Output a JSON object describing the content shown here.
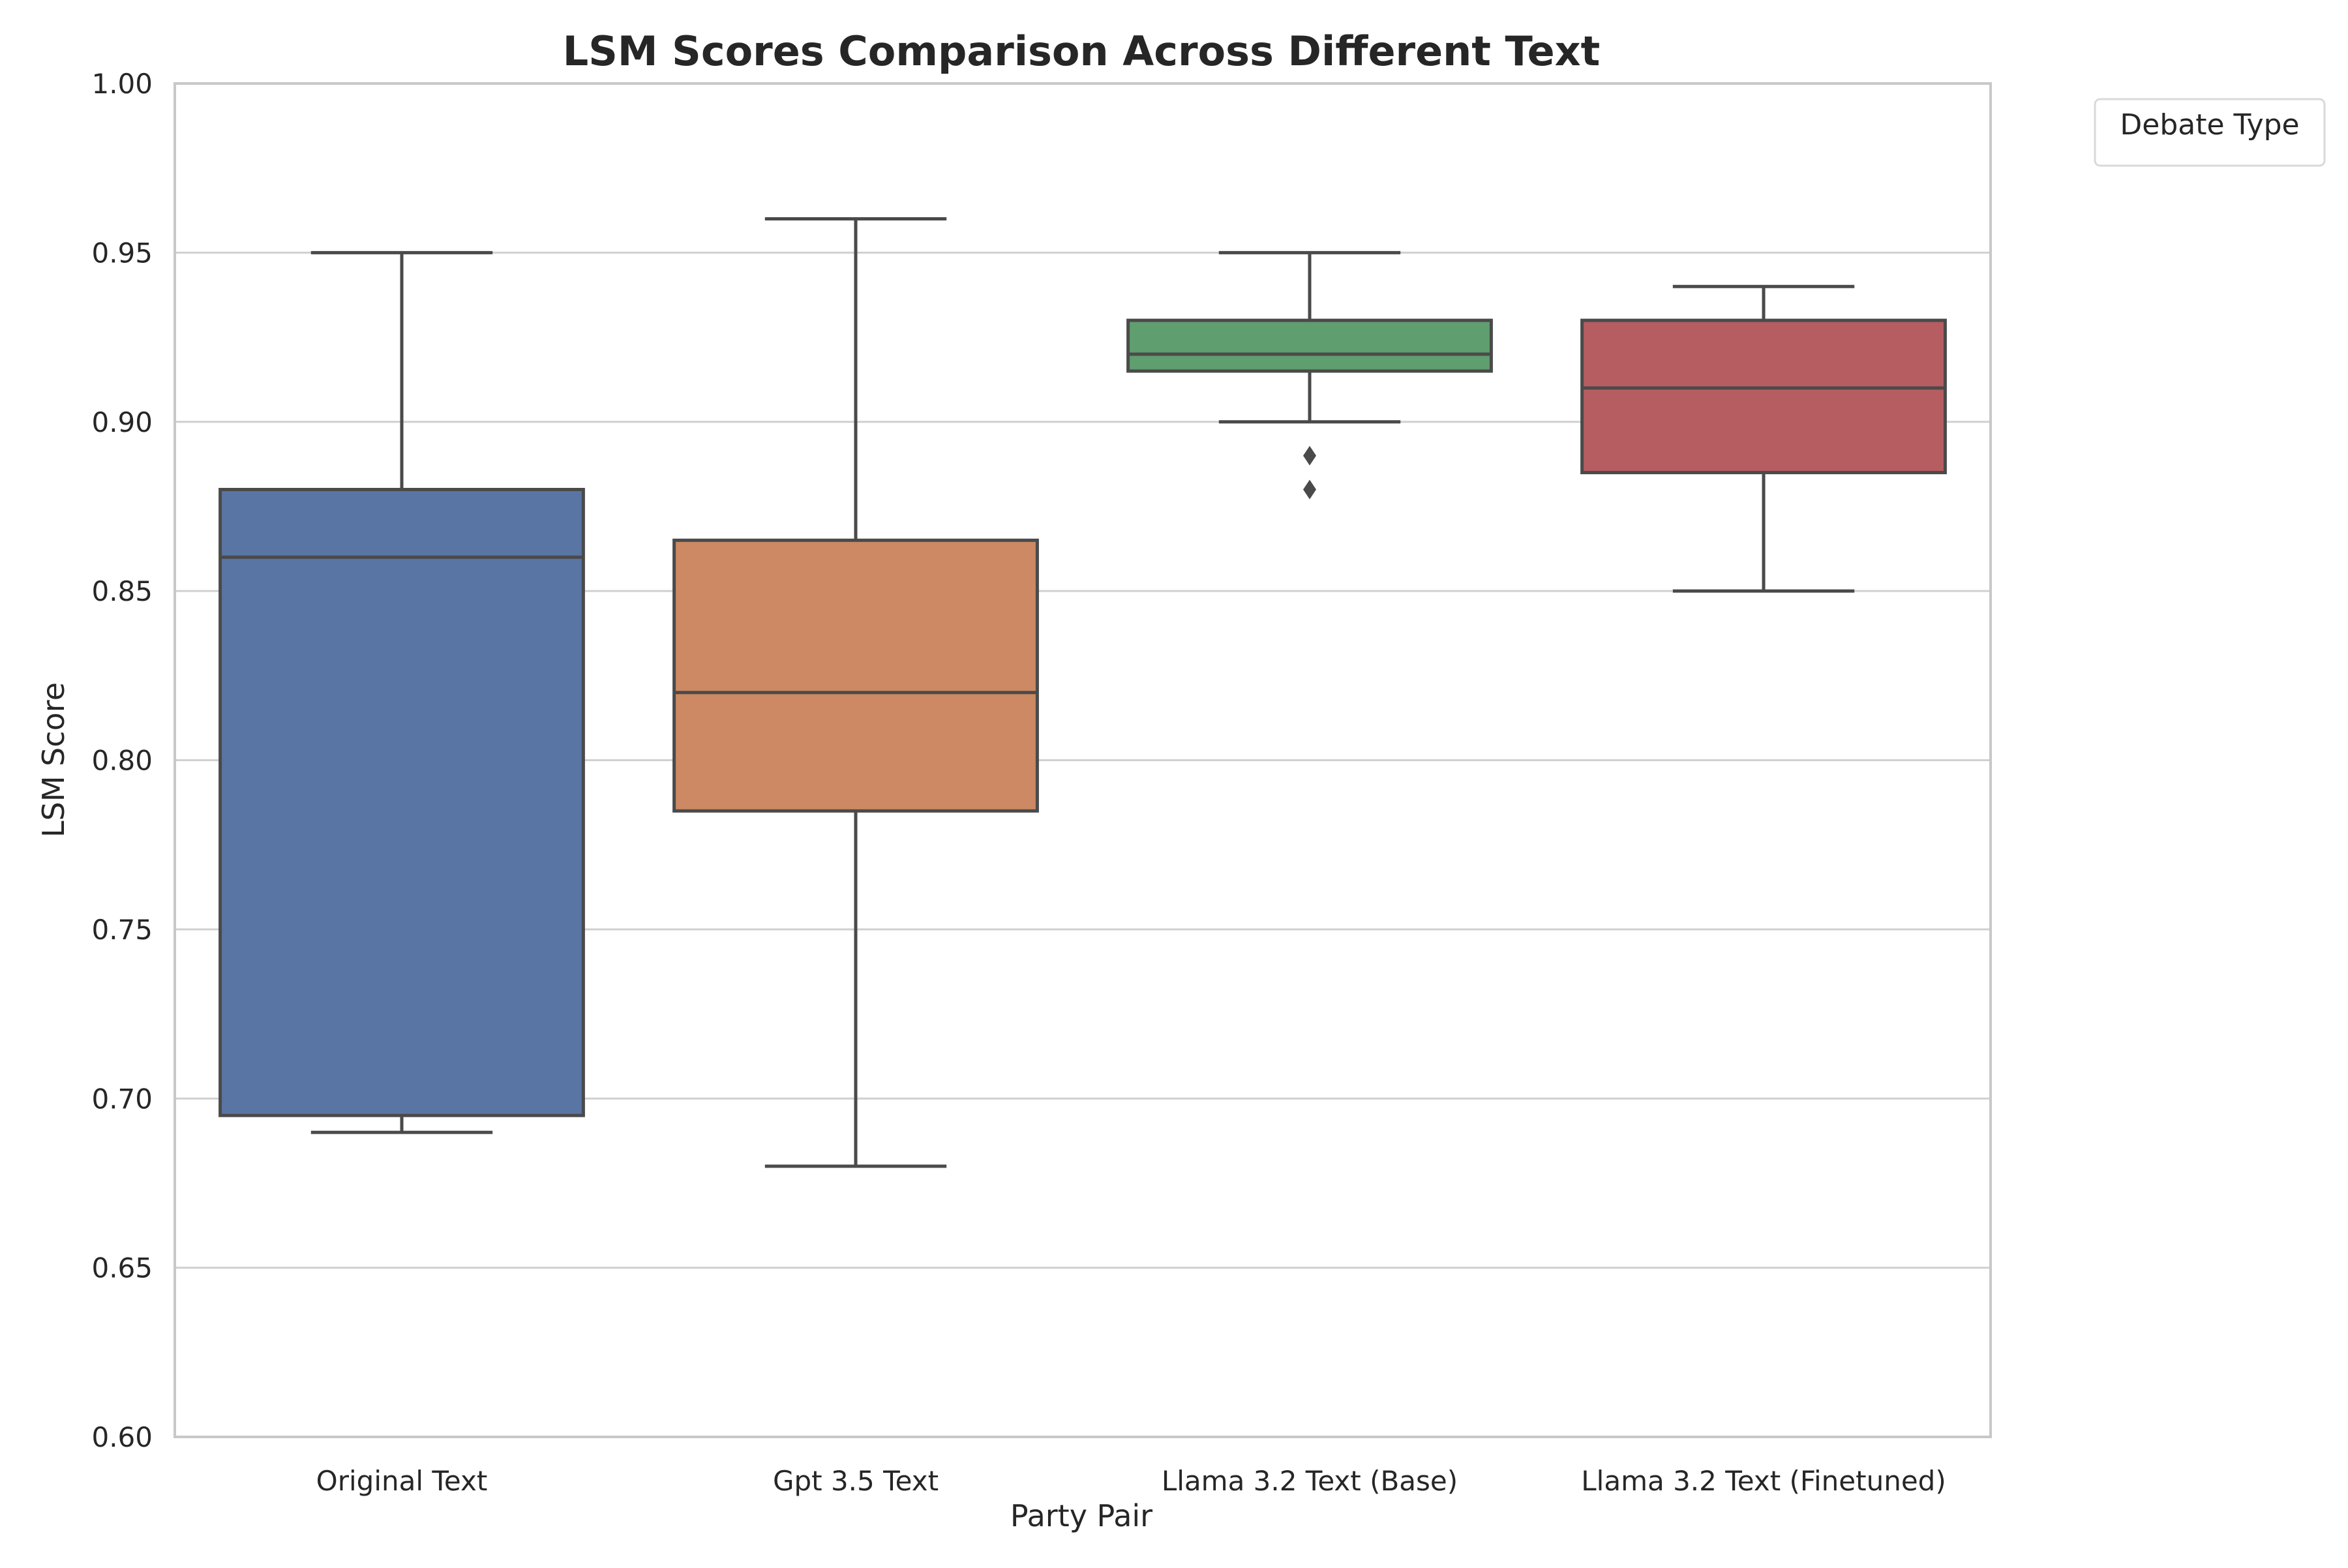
{
  "chart_data": {
    "type": "box",
    "title": "LSM Scores Comparison Across Different Text",
    "xlabel": "Party Pair",
    "ylabel": "LSM Score",
    "ylim": [
      0.6,
      1.0
    ],
    "yticks": [
      "0.60",
      "0.65",
      "0.70",
      "0.75",
      "0.80",
      "0.85",
      "0.90",
      "0.95",
      "1.00"
    ],
    "grid": "horizontal",
    "legend": {
      "title": "Debate Type",
      "placement": "outside-top-right",
      "entries": []
    },
    "categories": [
      "Original Text",
      "Gpt 3.5 Text",
      "Llama 3.2 Text (Base)",
      "Llama 3.2 Text (Finetuned)"
    ],
    "boxes": [
      {
        "category": "Original Text",
        "whisker_low": 0.69,
        "q1": 0.695,
        "median": 0.86,
        "q3": 0.88,
        "whisker_high": 0.95,
        "outliers": [],
        "color": "#5975A4"
      },
      {
        "category": "Gpt 3.5 Text",
        "whisker_low": 0.68,
        "q1": 0.785,
        "median": 0.82,
        "q3": 0.865,
        "whisker_high": 0.96,
        "outliers": [],
        "color": "#CC8963"
      },
      {
        "category": "Llama 3.2 Text (Base)",
        "whisker_low": 0.9,
        "q1": 0.915,
        "median": 0.92,
        "q3": 0.93,
        "whisker_high": 0.95,
        "outliers": [
          0.88,
          0.89
        ],
        "color": "#5F9E6E"
      },
      {
        "category": "Llama 3.2 Text (Finetuned)",
        "whisker_low": 0.85,
        "q1": 0.885,
        "median": 0.91,
        "q3": 0.93,
        "whisker_high": 0.94,
        "outliers": [],
        "color": "#B55D60"
      }
    ],
    "colors": {
      "line": "#4a4a4a",
      "grid": "#d0d0d0",
      "frame": "#c8c8c8",
      "legend_border": "#d9d9d9"
    }
  }
}
